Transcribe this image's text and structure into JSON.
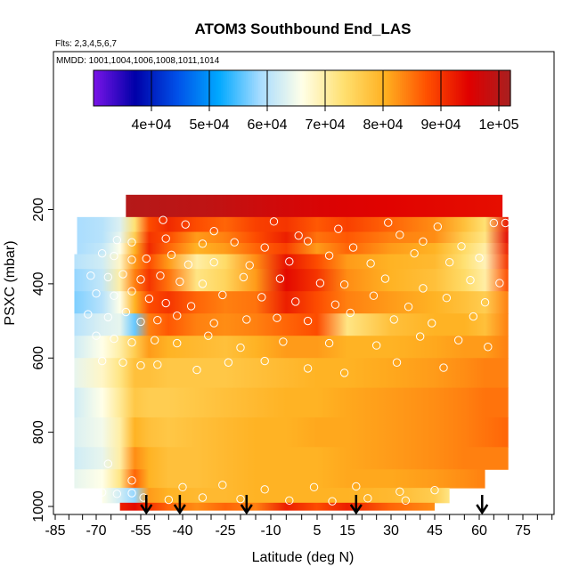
{
  "chart_data": {
    "type": "heatmap",
    "title": "ATOM3 Southbound End_LAS",
    "subtitle_flights": "Flts: 2,3,4,5,6,7",
    "subtitle_dates": "MMDD: 1001,1004,1006,1008,1011,1014",
    "xlabel": "Latitude (deg N)",
    "ylabel": "PSXC (mbar)",
    "xlim": [
      -85,
      85
    ],
    "ylim": [
      1010,
      120
    ],
    "y_reversed": true,
    "x_ticks": [
      -85,
      -70,
      -55,
      -40,
      -25,
      -10,
      5,
      15,
      30,
      45,
      60,
      75
    ],
    "y_ticks": [
      200,
      400,
      600,
      800,
      1000
    ],
    "colorbar": {
      "range": [
        30000,
        102000
      ],
      "ticks": [
        40000,
        50000,
        60000,
        70000,
        80000,
        90000,
        100000
      ],
      "tick_labels": [
        "4e+04",
        "5e+04",
        "6e+04",
        "7e+04",
        "8e+04",
        "9e+04",
        "1e+05"
      ],
      "colors": [
        "#7a14e8",
        "#0000a8",
        "#0050e8",
        "#00a8ff",
        "#a8dcff",
        "#ffffe8",
        "#ffe070",
        "#ffb020",
        "#ff5000",
        "#e00000",
        "#a82020"
      ]
    },
    "flight_arrows_lat": [
      -53,
      -41,
      -18,
      18,
      61
    ],
    "layers": [
      {
        "p": [
          160,
          230
        ],
        "lat": [
          -60,
          -50,
          -30,
          -10,
          10,
          30,
          50,
          68
        ],
        "val": [
          100500,
          100000,
          99000,
          97000,
          95500,
          94500,
          94000,
          93500
        ]
      },
      {
        "p": [
          220,
          260
        ],
        "lat": [
          -77,
          -68,
          -62,
          -57,
          -52,
          -45,
          -35,
          -25,
          -15,
          -5,
          5,
          15,
          30,
          45,
          55,
          62,
          70
        ],
        "val": [
          59000,
          60000,
          63000,
          73000,
          88000,
          91000,
          88000,
          86000,
          89000,
          90000,
          87000,
          89000,
          86000,
          83000,
          78000,
          73000,
          93000
        ]
      },
      {
        "p": [
          260,
          290
        ],
        "lat": [
          -77,
          -68,
          -62,
          -57,
          -52,
          -45,
          -35,
          -25,
          -15,
          -5,
          5,
          15,
          30,
          45,
          55,
          62,
          70
        ],
        "val": [
          59000,
          60000,
          64000,
          76000,
          90000,
          88000,
          82000,
          84000,
          88000,
          92000,
          85000,
          87000,
          84000,
          83000,
          76000,
          72000,
          94000
        ]
      },
      {
        "p": [
          290,
          320
        ],
        "lat": [
          -77,
          -68,
          -62,
          -57,
          -52,
          -45,
          -35,
          -25,
          -15,
          -5,
          5,
          15,
          30,
          45,
          55,
          62,
          70
        ],
        "val": [
          59000,
          61000,
          66000,
          80000,
          91000,
          86000,
          80000,
          82000,
          86000,
          89000,
          82000,
          86000,
          82000,
          80000,
          74000,
          70000,
          92000
        ]
      },
      {
        "p": [
          320,
          360
        ],
        "lat": [
          -78,
          -68,
          -62,
          -57,
          -52,
          -45,
          -35,
          -25,
          -15,
          -5,
          5,
          15,
          30,
          45,
          55,
          62,
          70
        ],
        "val": [
          60000,
          62000,
          68000,
          82000,
          88000,
          82000,
          70000,
          74000,
          83000,
          93000,
          88000,
          82000,
          80000,
          79000,
          73000,
          69000,
          90000
        ]
      },
      {
        "p": [
          360,
          420
        ],
        "lat": [
          -78,
          -68,
          -62,
          -57,
          -52,
          -45,
          -35,
          -25,
          -15,
          -5,
          5,
          15,
          30,
          45,
          55,
          62,
          70
        ],
        "val": [
          58000,
          61000,
          70000,
          84000,
          90000,
          85000,
          72000,
          75000,
          82000,
          94000,
          90000,
          83000,
          80000,
          78000,
          74000,
          70000,
          88000
        ]
      },
      {
        "p": [
          420,
          480
        ],
        "lat": [
          -78,
          -68,
          -62,
          -57,
          -52,
          -45,
          -35,
          -25,
          -15,
          -5,
          5,
          15,
          30,
          45,
          55,
          62,
          70
        ],
        "val": [
          57000,
          60000,
          66000,
          80000,
          88000,
          90000,
          86000,
          84000,
          85000,
          92000,
          88000,
          84000,
          82000,
          80000,
          78000,
          76000,
          84000
        ]
      },
      {
        "p": [
          480,
          540
        ],
        "lat": [
          -78,
          -68,
          -62,
          -57,
          -52,
          -45,
          -35,
          -25,
          -15,
          -5,
          5,
          15,
          30,
          45,
          55,
          62,
          70
        ],
        "val": [
          60000,
          63000,
          64000,
          56000,
          84000,
          87000,
          84000,
          83000,
          84000,
          86000,
          88000,
          72000,
          78000,
          80000,
          80000,
          78000,
          84000
        ]
      },
      {
        "p": [
          540,
          600
        ],
        "lat": [
          -78,
          -68,
          -62,
          -57,
          -52,
          -45,
          -35,
          -25,
          -15,
          -5,
          5,
          15,
          30,
          45,
          55,
          62,
          70
        ],
        "val": [
          62000,
          66000,
          70000,
          76000,
          82000,
          80000,
          79000,
          78000,
          80000,
          82000,
          82000,
          80000,
          80000,
          81000,
          82000,
          82000,
          84000
        ]
      },
      {
        "p": [
          600,
          680
        ],
        "lat": [
          -78,
          -68,
          -62,
          -57,
          -52,
          -45,
          -35,
          -25,
          -15,
          -5,
          5,
          15,
          30,
          45,
          55,
          62,
          70
        ],
        "val": [
          64000,
          68000,
          72000,
          78000,
          78000,
          77000,
          77000,
          77000,
          78000,
          79000,
          80000,
          80000,
          81000,
          82000,
          83000,
          84000,
          84000
        ]
      },
      {
        "p": [
          680,
          760
        ],
        "lat": [
          -78,
          -68,
          -62,
          -57,
          -52,
          -45,
          -35,
          -25,
          -15,
          -5,
          5,
          15,
          30,
          45,
          55,
          62,
          70
        ],
        "val": [
          62000,
          66000,
          71000,
          77000,
          76000,
          76000,
          77000,
          78000,
          79000,
          80000,
          80000,
          81000,
          82000,
          83000,
          84000,
          85000,
          85000
        ]
      },
      {
        "p": [
          760,
          840
        ],
        "lat": [
          -78,
          -68,
          -62,
          -57,
          -52,
          -45,
          -35,
          -25,
          -15,
          -5,
          5,
          15,
          30,
          45,
          55,
          62,
          70
        ],
        "val": [
          63000,
          65000,
          70000,
          80000,
          78000,
          77000,
          78000,
          79000,
          80000,
          80000,
          81000,
          81000,
          82000,
          83000,
          84000,
          85000,
          86000
        ]
      },
      {
        "p": [
          840,
          900
        ],
        "lat": [
          -78,
          -68,
          -62,
          -57,
          -52,
          -45,
          -35,
          -25,
          -15,
          -5,
          5,
          15,
          30,
          45,
          55,
          62,
          70
        ],
        "val": [
          62000,
          64000,
          70000,
          83000,
          80000,
          78000,
          78000,
          79000,
          80000,
          80000,
          80000,
          81000,
          82000,
          83000,
          84000,
          84000,
          84000
        ]
      },
      {
        "p": [
          900,
          950
        ],
        "lat": [
          -78,
          -68,
          -62,
          -57,
          -52,
          -45,
          -35,
          -25,
          -15,
          -5,
          5,
          15,
          30,
          45,
          55,
          62
        ],
        "val": [
          64000,
          66000,
          72000,
          86000,
          80000,
          78000,
          78000,
          79000,
          80000,
          80000,
          80000,
          81000,
          81000,
          82000,
          83000,
          84000
        ]
      },
      {
        "p": [
          950,
          990
        ],
        "lat": [
          -68,
          -62,
          -57,
          -52,
          -45,
          -35,
          -25,
          -15,
          -5,
          5,
          15,
          30,
          45,
          50
        ],
        "val": [
          66000,
          62000,
          58000,
          82000,
          80000,
          79000,
          79000,
          80000,
          80000,
          80000,
          80000,
          79000,
          76000,
          72000
        ]
      },
      {
        "p": [
          990,
          1010
        ],
        "lat": [
          -62,
          -57,
          -52,
          -45,
          -35,
          -25,
          -15,
          -5,
          5,
          15,
          30,
          45
        ],
        "val": [
          92000,
          94000,
          90000,
          86000,
          83000,
          86000,
          84000,
          92000,
          88000,
          92000,
          86000,
          83000
        ]
      }
    ],
    "points": [
      [
        -47,
        228
      ],
      [
        -39,
        240
      ],
      [
        -29,
        258
      ],
      [
        -9,
        232
      ],
      [
        -1,
        270
      ],
      [
        12,
        252
      ],
      [
        29,
        235
      ],
      [
        46,
        246
      ],
      [
        65,
        236
      ],
      [
        69,
        236
      ],
      [
        -63,
        282
      ],
      [
        -58,
        288
      ],
      [
        -46,
        278
      ],
      [
        -33,
        292
      ],
      [
        -22,
        288
      ],
      [
        -12,
        302
      ],
      [
        2,
        285
      ],
      [
        17,
        302
      ],
      [
        33,
        268
      ],
      [
        41,
        286
      ],
      [
        54,
        299
      ],
      [
        -68,
        318
      ],
      [
        -64,
        325
      ],
      [
        -58,
        335
      ],
      [
        -53,
        332
      ],
      [
        -44,
        322
      ],
      [
        -38,
        348
      ],
      [
        -29,
        342
      ],
      [
        -17,
        350
      ],
      [
        -4,
        340
      ],
      [
        9,
        324
      ],
      [
        23,
        345
      ],
      [
        38,
        318
      ],
      [
        50,
        342
      ],
      [
        60,
        330
      ],
      [
        -72,
        378
      ],
      [
        -66,
        382
      ],
      [
        -61,
        374
      ],
      [
        -55,
        388
      ],
      [
        -48,
        378
      ],
      [
        -41,
        394
      ],
      [
        -33,
        400
      ],
      [
        -19,
        382
      ],
      [
        -7,
        386
      ],
      [
        6,
        398
      ],
      [
        14,
        402
      ],
      [
        28,
        386
      ],
      [
        41,
        412
      ],
      [
        57,
        390
      ],
      [
        67,
        398
      ],
      [
        -70,
        426
      ],
      [
        -64,
        432
      ],
      [
        -58,
        420
      ],
      [
        -52,
        440
      ],
      [
        -46,
        452
      ],
      [
        -37,
        460
      ],
      [
        -26,
        430
      ],
      [
        -13,
        436
      ],
      [
        -2,
        448
      ],
      [
        11,
        456
      ],
      [
        24,
        432
      ],
      [
        36,
        462
      ],
      [
        49,
        438
      ],
      [
        62,
        450
      ],
      [
        -73,
        482
      ],
      [
        -66,
        490
      ],
      [
        -60,
        476
      ],
      [
        -55,
        502
      ],
      [
        -49,
        498
      ],
      [
        -42,
        486
      ],
      [
        -29,
        506
      ],
      [
        -18,
        496
      ],
      [
        -8,
        492
      ],
      [
        2,
        500
      ],
      [
        16,
        478
      ],
      [
        31,
        496
      ],
      [
        44,
        506
      ],
      [
        58,
        488
      ],
      [
        -70,
        540
      ],
      [
        -64,
        548
      ],
      [
        -58,
        558
      ],
      [
        -50,
        552
      ],
      [
        -42,
        560
      ],
      [
        -31,
        540
      ],
      [
        -20,
        572
      ],
      [
        -6,
        556
      ],
      [
        9,
        560
      ],
      [
        25,
        566
      ],
      [
        40,
        542
      ],
      [
        53,
        552
      ],
      [
        63,
        570
      ],
      [
        -68,
        608
      ],
      [
        -61,
        612
      ],
      [
        -55,
        620
      ],
      [
        -49,
        618
      ],
      [
        -35,
        632
      ],
      [
        -24,
        612
      ],
      [
        -12,
        608
      ],
      [
        2,
        628
      ],
      [
        14,
        640
      ],
      [
        32,
        612
      ],
      [
        48,
        626
      ],
      [
        -66,
        885
      ],
      [
        -58,
        930
      ],
      [
        -40,
        948
      ],
      [
        -26,
        942
      ],
      [
        -12,
        954
      ],
      [
        4,
        948
      ],
      [
        18,
        946
      ],
      [
        33,
        960
      ],
      [
        45,
        956
      ],
      [
        -68,
        962
      ],
      [
        -63,
        966
      ],
      [
        -58,
        964
      ],
      [
        -54,
        976
      ],
      [
        -45,
        982
      ],
      [
        -33,
        976
      ],
      [
        -20,
        980
      ],
      [
        -4,
        984
      ],
      [
        10,
        986
      ],
      [
        22,
        978
      ],
      [
        35,
        984
      ]
    ]
  }
}
